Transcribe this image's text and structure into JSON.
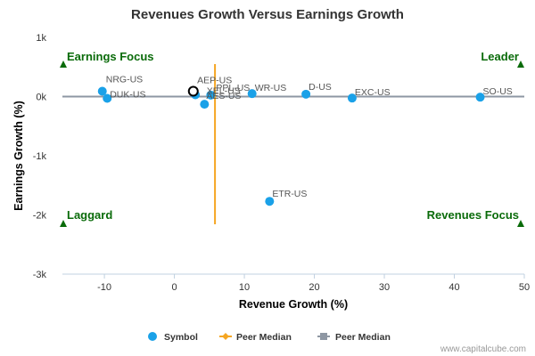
{
  "chart_data": {
    "type": "scatter",
    "title": "Revenues Growth Versus Earnings Growth",
    "xlabel": "Revenue Growth (%)",
    "ylabel": "Earnings Growth (%)",
    "xlim": [
      -16,
      50
    ],
    "ylim": [
      -3000,
      1000
    ],
    "x_ticks": [
      -10,
      0,
      10,
      20,
      30,
      40,
      50
    ],
    "x_tick_labels": [
      "-10",
      "0",
      "10",
      "20",
      "30",
      "40",
      "50"
    ],
    "y_ticks": [
      1000,
      0,
      -1000,
      -2000,
      -3000
    ],
    "y_tick_labels": [
      "1k",
      "0k",
      "-1k",
      "-2k",
      "-3k"
    ],
    "grid": false,
    "legend_position": "bottom",
    "colors": {
      "symbol": "#1aa1e8",
      "peer_median_x": "#f5a623",
      "peer_median_y": "#8e97a3",
      "quadrant": "#0a6b0a",
      "highlight": "#000000"
    },
    "series": [
      {
        "name": "Symbol",
        "points": [
          {
            "label": "NRG-US",
            "x": -10.3,
            "y": 90
          },
          {
            "label": "DUK-US",
            "x": -9.6,
            "y": -30
          },
          {
            "label": "AEP-US",
            "x": 3.0,
            "y": 30
          },
          {
            "label": "PPL-US",
            "x": 5.2,
            "y": 25
          },
          {
            "label": "AES-US",
            "x": 4.3,
            "y": -130
          },
          {
            "label": "WR-US",
            "x": 11.1,
            "y": 50
          },
          {
            "label": "D-US",
            "x": 18.8,
            "y": 40
          },
          {
            "label": "EXC-US",
            "x": 25.4,
            "y": -25
          },
          {
            "label": "SO-US",
            "x": 43.7,
            "y": -10
          },
          {
            "label": "ETR-US",
            "x": 13.6,
            "y": -1770
          }
        ]
      }
    ],
    "highlighted_point": {
      "label": "XEL-US",
      "x": 2.7,
      "y": 90
    },
    "peer_median": {
      "name": "Peer Median",
      "x": 5.8,
      "y": 0
    },
    "quadrants": [
      {
        "label": "Earnings Focus",
        "position": "top-left"
      },
      {
        "label": "Leader",
        "position": "top-right"
      },
      {
        "label": "Laggard",
        "position": "bottom-left"
      },
      {
        "label": "Revenues Focus",
        "position": "bottom-right"
      }
    ],
    "legend": [
      "Symbol",
      "Peer Median",
      "Peer Median"
    ]
  },
  "credit": "www.capitalcube.com"
}
